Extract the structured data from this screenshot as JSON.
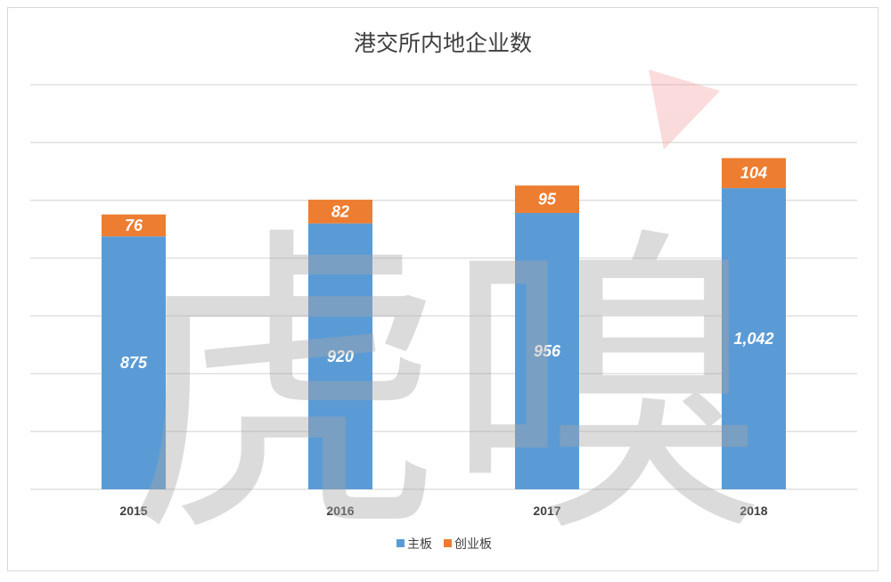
{
  "chart_data": {
    "type": "bar",
    "stacked": true,
    "title": "港交所内地企业数",
    "categories": [
      "2015",
      "2016",
      "2017",
      "2018"
    ],
    "series": [
      {
        "name": "主板",
        "values": [
          875,
          920,
          956,
          1042
        ],
        "value_labels": [
          "875",
          "920",
          "956",
          "1,042"
        ],
        "color": "#5b9bd5"
      },
      {
        "name": "创业板",
        "values": [
          76,
          82,
          95,
          104
        ],
        "value_labels": [
          "76",
          "82",
          "95",
          "104"
        ],
        "color": "#ed7d31"
      }
    ],
    "ylim": [
      0,
      1400
    ],
    "grid": true,
    "legend": "bottom",
    "xlabel": "",
    "ylabel": ""
  },
  "watermark": {
    "text": "虎嗅",
    "color": "#bfbfbf",
    "accent_color": "#f4a6a6"
  }
}
